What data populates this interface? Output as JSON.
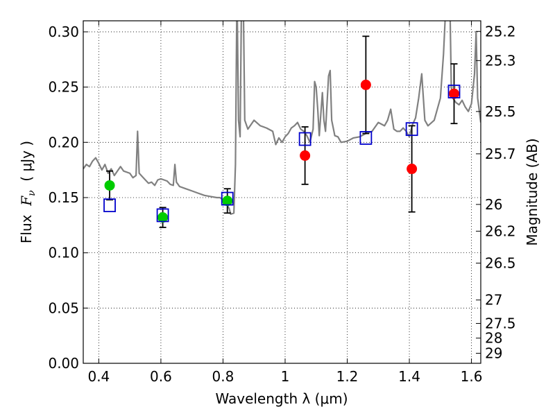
{
  "chart_data": {
    "type": "scatter",
    "xlabel": "Wavelength  λ (μm)",
    "ylabel": "Flux  Fν ( μJy )",
    "ylabel_parts": {
      "prefix": "Flux  ",
      "symbol": "F",
      "subscript": "ν",
      "suffix": "  ( μJy )"
    },
    "y2label": "Magnitude (AB)",
    "xlim": [
      0.35,
      1.63
    ],
    "ylim": [
      0.0,
      0.31
    ],
    "grid": true,
    "grid_style": "dotted",
    "x_ticks": [
      0.4,
      0.6,
      0.8,
      1.0,
      1.2,
      1.4,
      1.6
    ],
    "x_tick_labels": [
      "0.4",
      "0.6",
      "0.8",
      "1",
      "1.2",
      "1.4",
      "1.6"
    ],
    "y_ticks": [
      0.0,
      0.05,
      0.1,
      0.15,
      0.2,
      0.25,
      0.3
    ],
    "y_tick_labels": [
      "0.00",
      "0.05",
      "0.10",
      "0.15",
      "0.20",
      "0.25",
      "0.30"
    ],
    "magnitude_ticks": [
      {
        "label": "25.2",
        "flux": 0.3004
      },
      {
        "label": "25.3",
        "flux": 0.274
      },
      {
        "label": "25.5",
        "flux": 0.2279
      },
      {
        "label": "25.7",
        "flux": 0.1896
      },
      {
        "label": "26",
        "flux": 0.1438
      },
      {
        "label": "26.2",
        "flux": 0.1196
      },
      {
        "label": "26.5",
        "flux": 0.0907
      },
      {
        "label": "27",
        "flux": 0.0573
      },
      {
        "label": "27.5",
        "flux": 0.0361
      },
      {
        "label": "28",
        "flux": 0.0228
      },
      {
        "label": "29",
        "flux": 0.0091
      }
    ],
    "series": [
      {
        "kind": "line",
        "color": "#808080",
        "points": [
          [
            0.35,
            0.176
          ],
          [
            0.36,
            0.18
          ],
          [
            0.37,
            0.178
          ],
          [
            0.38,
            0.183
          ],
          [
            0.39,
            0.186
          ],
          [
            0.4,
            0.181
          ],
          [
            0.41,
            0.175
          ],
          [
            0.42,
            0.18
          ],
          [
            0.43,
            0.172
          ],
          [
            0.44,
            0.176
          ],
          [
            0.45,
            0.17
          ],
          [
            0.46,
            0.174
          ],
          [
            0.47,
            0.178
          ],
          [
            0.48,
            0.174
          ],
          [
            0.5,
            0.172
          ],
          [
            0.51,
            0.168
          ],
          [
            0.52,
            0.17
          ],
          [
            0.525,
            0.21
          ],
          [
            0.53,
            0.172
          ],
          [
            0.55,
            0.166
          ],
          [
            0.56,
            0.163
          ],
          [
            0.57,
            0.164
          ],
          [
            0.58,
            0.161
          ],
          [
            0.59,
            0.166
          ],
          [
            0.6,
            0.167
          ],
          [
            0.62,
            0.165
          ],
          [
            0.63,
            0.162
          ],
          [
            0.64,
            0.161
          ],
          [
            0.645,
            0.18
          ],
          [
            0.65,
            0.164
          ],
          [
            0.66,
            0.16
          ],
          [
            0.68,
            0.158
          ],
          [
            0.7,
            0.156
          ],
          [
            0.72,
            0.154
          ],
          [
            0.74,
            0.152
          ],
          [
            0.76,
            0.151
          ],
          [
            0.78,
            0.15
          ],
          [
            0.79,
            0.15
          ],
          [
            0.8,
            0.148
          ],
          [
            0.81,
            0.145
          ],
          [
            0.82,
            0.14
          ],
          [
            0.825,
            0.135
          ],
          [
            0.835,
            0.136
          ],
          [
            0.84,
            0.18
          ],
          [
            0.845,
            0.34
          ],
          [
            0.85,
            0.22
          ],
          [
            0.855,
            0.205
          ],
          [
            0.86,
            0.34
          ],
          [
            0.865,
            0.34
          ],
          [
            0.87,
            0.22
          ],
          [
            0.88,
            0.212
          ],
          [
            0.9,
            0.22
          ],
          [
            0.92,
            0.215
          ],
          [
            0.94,
            0.213
          ],
          [
            0.96,
            0.21
          ],
          [
            0.97,
            0.198
          ],
          [
            0.98,
            0.204
          ],
          [
            0.99,
            0.2
          ],
          [
            1.0,
            0.205
          ],
          [
            1.01,
            0.208
          ],
          [
            1.02,
            0.213
          ],
          [
            1.03,
            0.215
          ],
          [
            1.04,
            0.218
          ],
          [
            1.05,
            0.212
          ],
          [
            1.06,
            0.21
          ],
          [
            1.07,
            0.206
          ],
          [
            1.08,
            0.2
          ],
          [
            1.09,
            0.212
          ],
          [
            1.095,
            0.255
          ],
          [
            1.1,
            0.25
          ],
          [
            1.105,
            0.23
          ],
          [
            1.11,
            0.206
          ],
          [
            1.12,
            0.245
          ],
          [
            1.125,
            0.22
          ],
          [
            1.13,
            0.21
          ],
          [
            1.14,
            0.26
          ],
          [
            1.145,
            0.265
          ],
          [
            1.15,
            0.22
          ],
          [
            1.16,
            0.206
          ],
          [
            1.17,
            0.205
          ],
          [
            1.18,
            0.2
          ],
          [
            1.2,
            0.201
          ],
          [
            1.22,
            0.204
          ],
          [
            1.24,
            0.205
          ],
          [
            1.26,
            0.208
          ],
          [
            1.28,
            0.21
          ],
          [
            1.3,
            0.218
          ],
          [
            1.32,
            0.215
          ],
          [
            1.33,
            0.22
          ],
          [
            1.34,
            0.23
          ],
          [
            1.35,
            0.212
          ],
          [
            1.36,
            0.21
          ],
          [
            1.37,
            0.21
          ],
          [
            1.38,
            0.213
          ],
          [
            1.39,
            0.21
          ],
          [
            1.4,
            0.205
          ],
          [
            1.41,
            0.216
          ],
          [
            1.42,
            0.222
          ],
          [
            1.43,
            0.24
          ],
          [
            1.44,
            0.262
          ],
          [
            1.45,
            0.22
          ],
          [
            1.46,
            0.215
          ],
          [
            1.48,
            0.22
          ],
          [
            1.5,
            0.24
          ],
          [
            1.51,
            0.28
          ],
          [
            1.52,
            0.34
          ],
          [
            1.53,
            0.34
          ],
          [
            1.535,
            0.25
          ],
          [
            1.54,
            0.24
          ],
          [
            1.55,
            0.236
          ],
          [
            1.56,
            0.234
          ],
          [
            1.57,
            0.238
          ],
          [
            1.58,
            0.232
          ],
          [
            1.59,
            0.228
          ],
          [
            1.6,
            0.235
          ],
          [
            1.61,
            0.262
          ],
          [
            1.615,
            0.3
          ],
          [
            1.62,
            0.24
          ],
          [
            1.63,
            0.218
          ]
        ]
      },
      {
        "kind": "points",
        "marker": "circle",
        "color": "#00cc00",
        "points": [
          {
            "x": 0.435,
            "y": 0.161,
            "err": 0.013
          },
          {
            "x": 0.606,
            "y": 0.132,
            "err": 0.009
          },
          {
            "x": 0.814,
            "y": 0.147,
            "err": 0.011
          }
        ]
      },
      {
        "kind": "points",
        "marker": "circle",
        "color": "#ff0000",
        "points": [
          {
            "x": 1.064,
            "y": 0.188,
            "err": 0.026
          },
          {
            "x": 1.26,
            "y": 0.252,
            "err": 0.044
          },
          {
            "x": 1.408,
            "y": 0.176,
            "err": 0.039
          },
          {
            "x": 1.544,
            "y": 0.244,
            "err": 0.027
          }
        ]
      },
      {
        "kind": "points",
        "marker": "open-square",
        "color": "#0000cc",
        "points": [
          {
            "x": 0.435,
            "y": 0.143
          },
          {
            "x": 0.606,
            "y": 0.134
          },
          {
            "x": 0.814,
            "y": 0.149
          },
          {
            "x": 1.064,
            "y": 0.203
          },
          {
            "x": 1.26,
            "y": 0.204
          },
          {
            "x": 1.408,
            "y": 0.212
          },
          {
            "x": 1.544,
            "y": 0.246
          }
        ]
      }
    ]
  }
}
